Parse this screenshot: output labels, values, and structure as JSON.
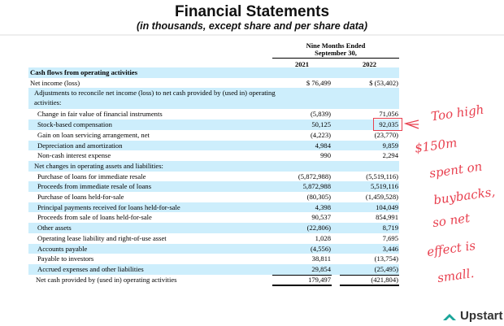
{
  "header": {
    "title": "Financial Statements",
    "subtitle": "(in thousands, except share and per share data)"
  },
  "table": {
    "period_header_line1": "Nine Months Ended",
    "period_header_line2": "September 30,",
    "columns": [
      "2021",
      "2022"
    ],
    "rows": [
      {
        "label": "Cash flows from operating activities",
        "v1": "",
        "v2": "",
        "bold": true
      },
      {
        "label": "Net income (loss)",
        "v1": "$  76,499",
        "v2": "$  (53,402)"
      },
      {
        "label": "Adjustments to reconcile net income (loss) to net cash provided by (used in) operating activities:",
        "v1": "",
        "v2": ""
      },
      {
        "label": "Change in fair value of financial instruments",
        "v1": "(5,839)",
        "v2": "71,056"
      },
      {
        "label": "Stock-based compensation",
        "v1": "50,125",
        "v2": "92,035"
      },
      {
        "label": "Gain on loan servicing arrangement, net",
        "v1": "(4,223)",
        "v2": "(23,770)"
      },
      {
        "label": "Depreciation and amortization",
        "v1": "4,984",
        "v2": "9,859"
      },
      {
        "label": "Non-cash interest expense",
        "v1": "990",
        "v2": "2,294"
      },
      {
        "label": "Net changes in operating assets and liabilities:",
        "v1": "",
        "v2": ""
      },
      {
        "label": "Purchase of loans for immediate resale",
        "v1": "(5,872,988)",
        "v2": "(5,519,116)"
      },
      {
        "label": "Proceeds from immediate resale of loans",
        "v1": "5,872,988",
        "v2": "5,519,116"
      },
      {
        "label": "Purchase of loans held-for-sale",
        "v1": "(80,305)",
        "v2": "(1,459,528)"
      },
      {
        "label": "Principal payments received for loans held-for-sale",
        "v1": "4,398",
        "v2": "104,049"
      },
      {
        "label": "Proceeds from sale of loans held-for-sale",
        "v1": "90,537",
        "v2": "854,991"
      },
      {
        "label": "Other assets",
        "v1": "(22,806)",
        "v2": "8,719"
      },
      {
        "label": "Operating lease liability and right-of-use asset",
        "v1": "1,028",
        "v2": "7,695"
      },
      {
        "label": "Accounts payable",
        "v1": "(4,556)",
        "v2": "3,446"
      },
      {
        "label": "Payable to investors",
        "v1": "38,811",
        "v2": "(13,754)"
      },
      {
        "label": "Accrued expenses and other liabilities",
        "v1": "29,854",
        "v2": "(25,495)"
      },
      {
        "label": "Net cash provided by (used in) operating activities",
        "v1": "179,497",
        "v2": "(421,804)"
      }
    ]
  },
  "annotation": {
    "lines": [
      "Too high",
      "$150m",
      "spent on",
      "buybacks,",
      "so net",
      "effect is",
      "small."
    ],
    "color": "#e8404f"
  },
  "logo": {
    "text": "Upstart",
    "color": "#1aa59a"
  }
}
